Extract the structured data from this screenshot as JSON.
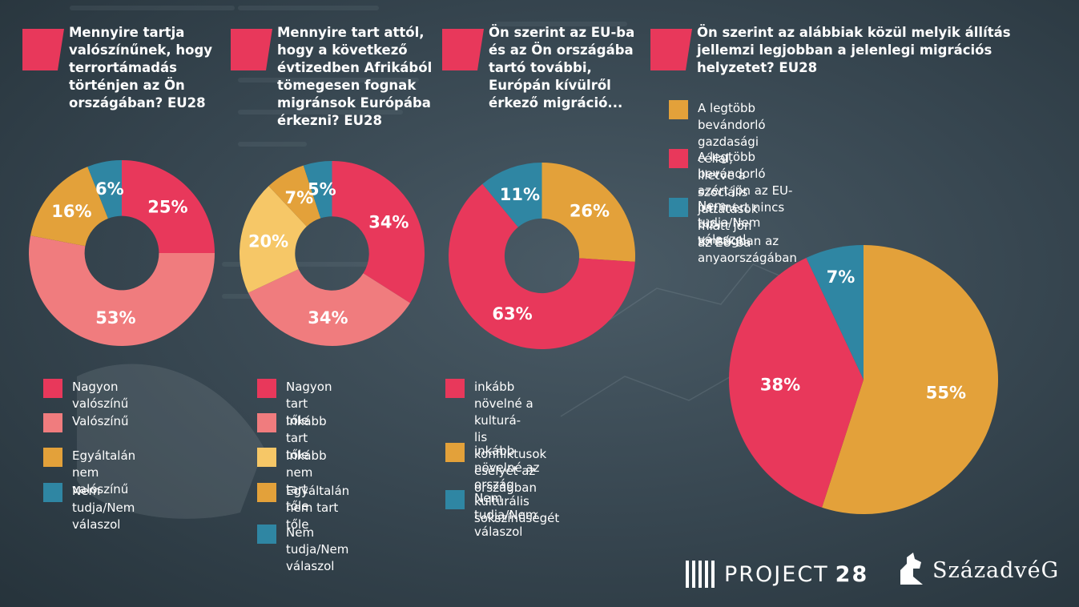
{
  "colors": {
    "strong": "#e8385b",
    "light_pink": "#f07c7e",
    "light_yellow": "#f6c767",
    "orange": "#e3a13a",
    "teal": "#2f86a3"
  },
  "charts": [
    {
      "id": "q1",
      "question": "Mennyire tartja\nvalószínűnek, hogy\nterrortámadás\ntörténjen az Ön\nországában? EU28",
      "legend": [
        "Nagyon valószínű",
        "Valószínű",
        "Egyáltalán nem\nvalószínű",
        "Nem tudja/Nem\nválaszol"
      ]
    },
    {
      "id": "q2",
      "question": "Mennyire tart attól,\nhogy a következő\névtizedben Afrikából\ntömegesen fognak\nmigránsok Európába\nérkezni? EU28",
      "legend": [
        "Nagyon tart tőle",
        "Inkább tart tőle",
        "Inkább nem tart tőle",
        "Egyáltalán nem tart\ntőle",
        "Nem tudja/Nem\nválaszol"
      ]
    },
    {
      "id": "q3",
      "question": "Ön szerint az EU-ba\nés az Ön országába\ntartó további,\nEurópán kívülről\nérkező migráció...",
      "legend": [
        "inkább növelné a kulturá-\nlis konfliktusok esélyét az\nországban",
        "inkább növelné az ország\nkulturális sokszínűségét",
        "Nem tudja/Nem\nválaszol"
      ]
    },
    {
      "id": "q4",
      "question": "Ön szerint az alábbiak közül melyik állítás\njellemzi legjobban a jelenlegi migrációs\nhelyzetet? EU28",
      "legend": [
        "A legtöbb bevándorló gazdasági céllal, illetve a szociális\njuttatások miatt jön az EU-ba",
        "A legtöbb bevándorló azért jön az EU-ba, mert nincs biz-\ntonságban az anyaországában",
        "Nem tudja/Nem válaszol"
      ]
    }
  ],
  "chart_data": [
    {
      "type": "pie",
      "donut": true,
      "title": "Mennyire tartja valószínűnek, hogy terrortámadás történjen az Ön országában? EU28",
      "categories": [
        "Nagyon valószínű",
        "Valószínű",
        "Egyáltalán nem valószínű",
        "Nem tudja/Nem válaszol"
      ],
      "values": [
        25,
        53,
        16,
        6
      ],
      "labels": [
        "25%",
        "53%",
        "16%",
        "6%"
      ],
      "colors": [
        "#e8385b",
        "#f07c7e",
        "#e3a13a",
        "#2f86a3"
      ]
    },
    {
      "type": "pie",
      "donut": true,
      "title": "Mennyire tart attól, hogy a következő évtizedben Afrikából tömegesen fognak migránsok Európába érkezni? EU28",
      "categories": [
        "Nagyon tart tőle",
        "Inkább tart tőle",
        "Inkább nem tart tőle",
        "Egyáltalán nem tart tőle",
        "Nem tudja/Nem válaszol"
      ],
      "values": [
        34,
        34,
        20,
        7,
        5
      ],
      "labels": [
        "34%",
        "34%",
        "20%",
        "7%",
        "5%"
      ],
      "colors": [
        "#e8385b",
        "#f07c7e",
        "#f6c767",
        "#e3a13a",
        "#2f86a3"
      ]
    },
    {
      "type": "pie",
      "donut": true,
      "title": "Ön szerint az EU-ba és az Ön országába tartó további, Európán kívülről érkező migráció...",
      "categories": [
        "inkább növelné az ország kulturális sokszínűségét",
        "inkább növelné a kulturális konfliktusok esélyét az országban",
        "Nem tudja/Nem válaszol"
      ],
      "values": [
        26,
        63,
        11
      ],
      "labels": [
        "26%",
        "63%",
        "11%"
      ],
      "colors": [
        "#e3a13a",
        "#e8385b",
        "#2f86a3"
      ]
    },
    {
      "type": "pie",
      "donut": false,
      "title": "Ön szerint az alábbiak közül melyik állítás jellemzi legjobban a jelenlegi migrációs helyzetet? EU28",
      "categories": [
        "A legtöbb bevándorló gazdasági céllal, illetve a szociális juttatások miatt jön az EU-ba",
        "A legtöbb bevándorló azért jön az EU-ba, mert nincs biztonságban az anyaországában",
        "Nem tudja/Nem válaszol"
      ],
      "values": [
        55,
        38,
        7
      ],
      "labels": [
        "55%",
        "38%",
        "7%"
      ],
      "colors": [
        "#e3a13a",
        "#e8385b",
        "#2f86a3"
      ]
    }
  ],
  "logos": {
    "project": "PROJECT",
    "project_number": "28",
    "szazadveg": "SzázadvéG"
  }
}
